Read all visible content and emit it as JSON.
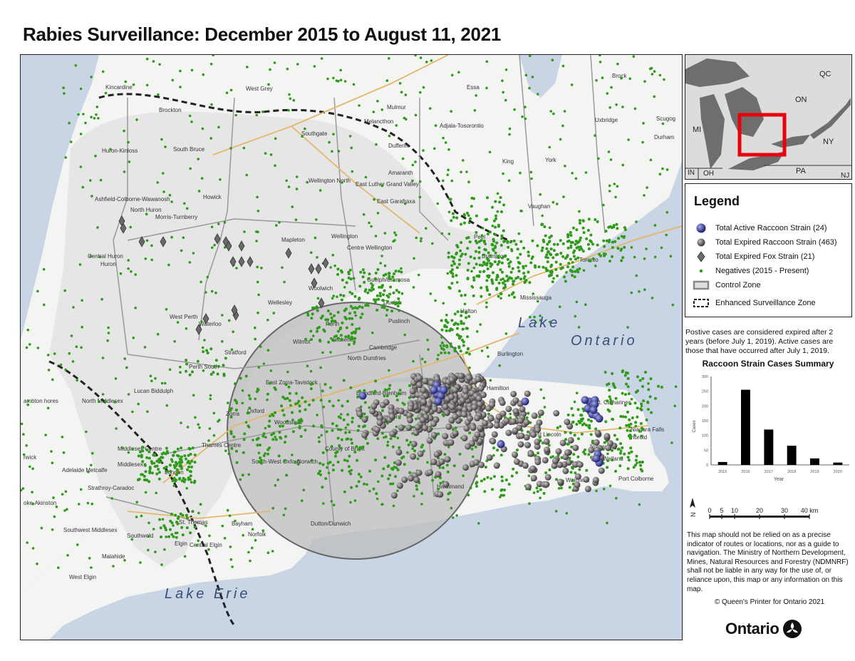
{
  "title": "Rabies Surveillance: December 2015 to August 11, 2021",
  "map": {
    "lakes": [
      "Lake",
      "Ontario",
      "Lake Erie"
    ],
    "places": [
      "Kincardine",
      "West Grey",
      "Mulmur",
      "Essa",
      "Brock",
      "Brockton",
      "Melancthon",
      "Adjala-Tosorontio",
      "Uxbridge",
      "Scugog",
      "Southgate",
      "Dufferin",
      "Huron-Kinloss",
      "South Bruce",
      "Wellington North",
      "East Luther Grand Valley",
      "Amaranth",
      "King",
      "York",
      "Durham",
      "Ashfield-Colborne-Wawanosh",
      "Howick",
      "East Garafraxa",
      "Vaughan",
      "North Huron",
      "Morris-Turnberry",
      "Mapleton",
      "Wellington",
      "Peel",
      "Central Huron",
      "Huron",
      "Centre Wellington",
      "Brampton",
      "Toronto",
      "Guelph/Eramosa",
      "Wellesley",
      "Woolwich",
      "Guelph",
      "Mississauga",
      "West Perth",
      "Perth",
      "Waterloo",
      "Halton",
      "Puslinch",
      "Wilmot",
      "Kitchener",
      "Cambridge",
      "Burlington",
      "Stratford",
      "North Dumfries",
      "Perth South",
      "East Zorra-Tavistock",
      "Blandford-Blenheim",
      "Hamilton",
      "Lucan Biddulph",
      "St. Catharines",
      "ambton hores",
      "North Middlesex",
      "Zorra",
      "Oxford",
      "Brantford",
      "Woodstock",
      "West Lincoln",
      "Thorold",
      "Niagara Falls",
      "Middlesex Centre",
      "Thames Centre",
      "County of Brant",
      "Niagara",
      "Welland",
      "Middlesex",
      "South-West Oxford",
      "Norwich",
      "rwick",
      "Adelaide Metcalfe",
      "London",
      "Port Colborne",
      "Strathroy-Caradoc",
      "Wainfleet",
      "Haldimand",
      "oke-Akinston",
      "Southwest Middlesex",
      "St. Thomas",
      "Southwold",
      "Elgin",
      "Central Elgin",
      "Malahide",
      "Bayham",
      "Norfolk",
      "Dutton/Dunwich",
      "West Elgin"
    ]
  },
  "inset": {
    "labels": [
      "QC",
      "ON",
      "MI",
      "NY",
      "PA",
      "IN",
      "OH",
      "NJ"
    ]
  },
  "legend": {
    "title": "Legend",
    "items": [
      {
        "label": "Total Active Raccoon Strain (24)",
        "symbol": "blue-sphere",
        "color": "#3a3f9a"
      },
      {
        "label": "Total Expired Raccoon Strain (463)",
        "symbol": "gray-sphere",
        "color": "#6e6868"
      },
      {
        "label": "Total Expired Fox Strain (21)",
        "symbol": "gray-diamond",
        "color": "#6a6a6a"
      },
      {
        "label": "Negatives (2015 - Present)",
        "symbol": "green-dot",
        "color": "#2f9a1c"
      },
      {
        "label": "Control Zone",
        "symbol": "control-zone-box",
        "color": "#b4b4b4"
      },
      {
        "label": "Enhanced Surveillance Zone",
        "symbol": "dashed-box",
        "color": "#222222"
      }
    ]
  },
  "expiry_note": "Postive cases are considered expired after 2 years (before July 1, 2019). Active cases are those that have occurred after July 1, 2019.",
  "chart_data": {
    "type": "bar",
    "title": "Raccoon Strain Cases Summary",
    "categories": [
      "2015",
      "2016",
      "2017",
      "2018",
      "2019",
      "2020"
    ],
    "values": [
      10,
      255,
      120,
      65,
      22,
      8
    ],
    "xlabel": "Year",
    "ylabel": "Cases",
    "ylim": [
      0,
      300
    ],
    "yticks": [
      "0",
      "50",
      "100",
      "150",
      "200",
      "250",
      "300"
    ],
    "grid": false
  },
  "scale_bar": {
    "labels": [
      "0",
      "5",
      "10",
      "20",
      "30",
      "40 km"
    ],
    "north": "N"
  },
  "disclaimer": "This map should not be relied on as a precise indicator of routes or locations, nor as a guide to navigation. The Ministry of Northern Development, Mines, Natural Resources and Forestry (NDMNRF) shall not be liable in any way for the use of, or reliance upon, this map or any information on this map.",
  "copyright": "© Queen's Printer for Ontario 2021",
  "logo_text": "Ontario"
}
